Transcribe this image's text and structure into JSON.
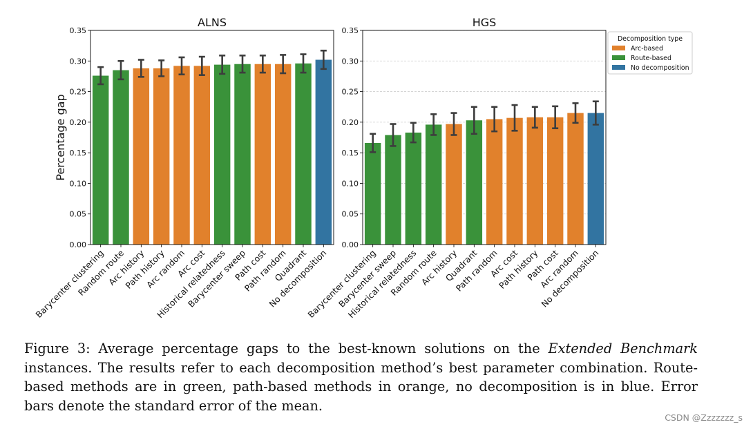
{
  "chart_data": [
    {
      "type": "bar",
      "title": "ALNS",
      "ylabel": "Percentage gap",
      "xlabel": "",
      "ylim": [
        0,
        0.35
      ],
      "yticks": [
        "0.00",
        "0.05",
        "0.10",
        "0.15",
        "0.20",
        "0.25",
        "0.30",
        "0.35"
      ],
      "grid": false,
      "categories": [
        "Barycenter clustering",
        "Random route",
        "Arc history",
        "Path history",
        "Arc random",
        "Arc cost",
        "Historical relatedness",
        "Barycenter sweep",
        "Path cost",
        "Path random",
        "Quadrant",
        "No decomposition"
      ],
      "values": [
        0.276,
        0.285,
        0.288,
        0.288,
        0.292,
        0.292,
        0.294,
        0.295,
        0.295,
        0.295,
        0.296,
        0.302
      ],
      "errors": [
        0.014,
        0.015,
        0.014,
        0.013,
        0.014,
        0.015,
        0.015,
        0.014,
        0.014,
        0.015,
        0.015,
        0.015
      ],
      "groups": [
        "Route-based",
        "Route-based",
        "Arc-based",
        "Arc-based",
        "Arc-based",
        "Arc-based",
        "Route-based",
        "Route-based",
        "Arc-based",
        "Arc-based",
        "Route-based",
        "No decomposition"
      ]
    },
    {
      "type": "bar",
      "title": "HGS",
      "ylabel": "",
      "xlabel": "",
      "ylim": [
        0,
        0.35
      ],
      "yticks": [
        "0.00",
        "0.05",
        "0.10",
        "0.15",
        "0.20",
        "0.25",
        "0.30",
        "0.35"
      ],
      "grid": true,
      "categories": [
        "Barycenter clustering",
        "Barycenter sweep",
        "Historical relatedness",
        "Random route",
        "Arc history",
        "Quadrant",
        "Path random",
        "Arc cost",
        "Path history",
        "Path cost",
        "Arc random",
        "No decomposition"
      ],
      "values": [
        0.166,
        0.179,
        0.183,
        0.196,
        0.197,
        0.203,
        0.205,
        0.207,
        0.208,
        0.208,
        0.215,
        0.215
      ],
      "errors": [
        0.015,
        0.018,
        0.016,
        0.017,
        0.018,
        0.022,
        0.02,
        0.021,
        0.017,
        0.018,
        0.016,
        0.019
      ],
      "groups": [
        "Route-based",
        "Route-based",
        "Route-based",
        "Route-based",
        "Arc-based",
        "Route-based",
        "Arc-based",
        "Arc-based",
        "Arc-based",
        "Arc-based",
        "Arc-based",
        "No decomposition"
      ]
    }
  ],
  "legend": {
    "title": "Decomposition type",
    "placement": "upper-left outside right of HGS plot",
    "items": [
      {
        "label": "Arc-based",
        "color": "#e1812c"
      },
      {
        "label": "Route-based",
        "color": "#3a923a"
      },
      {
        "label": "No decomposition",
        "color": "#3274a1"
      }
    ]
  },
  "group_colors": {
    "Arc-based": "#e1812c",
    "Route-based": "#3a923a",
    "No decomposition": "#3274a1"
  },
  "caption": {
    "part1": "Figure 3: Average percentage gaps to the best-known solutions on the ",
    "emphasis": "Extended Benchmark",
    "part2": " instances. The results refer to each decomposition method’s best parameter combination. Route-based methods are in green, path-based methods in orange, no decomposition is in blue. Error bars denote the standard error of the mean."
  },
  "watermark": "CSDN @Zzzzzzz_s"
}
